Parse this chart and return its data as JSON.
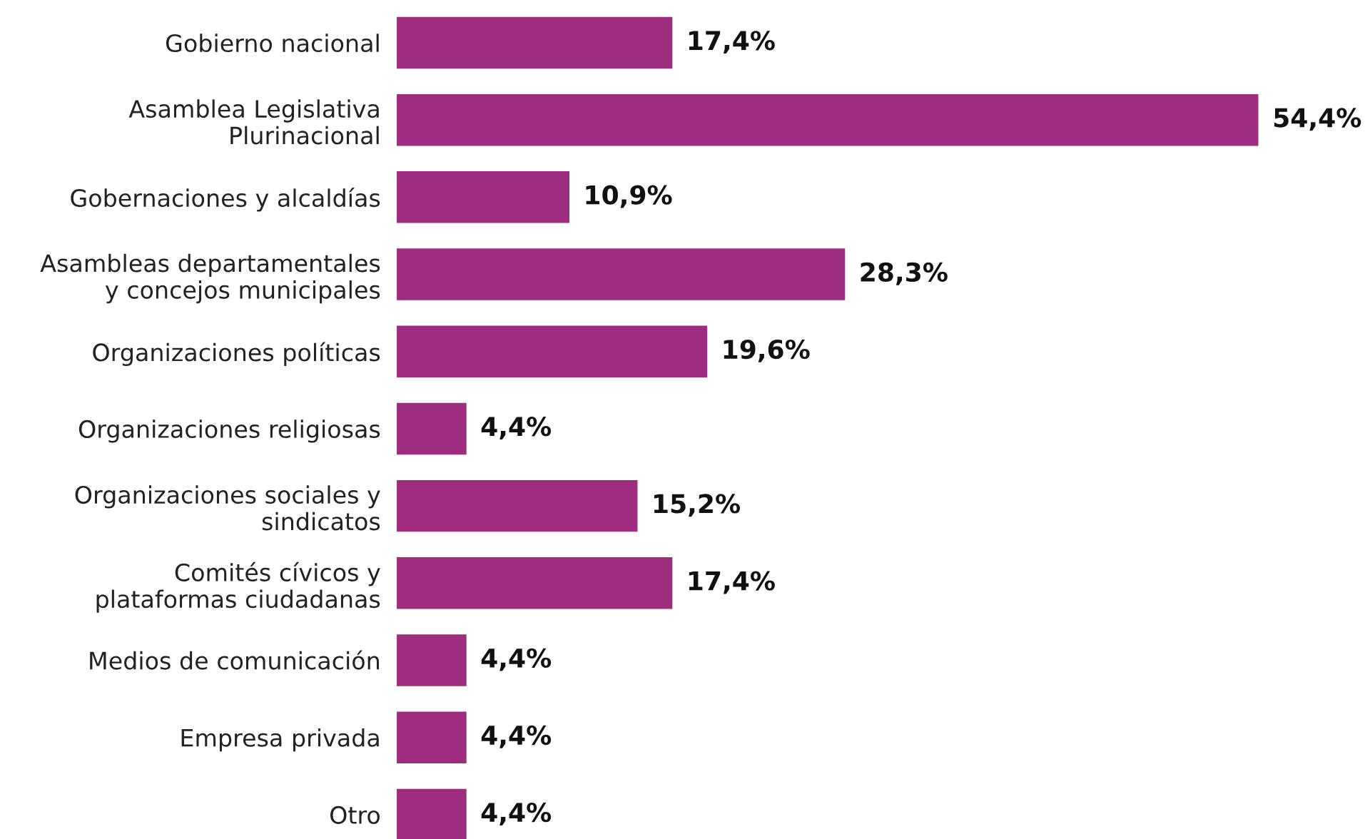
{
  "chart_data": {
    "type": "bar",
    "orientation": "horizontal",
    "categories": [
      "Gobierno nacional",
      "Asamblea Legislativa\nPlurinacional",
      "Gobernaciones y alcaldías",
      "Asambleas departamentales\ny concejos municipales",
      "Organizaciones políticas",
      "Organizaciones religiosas",
      "Organizaciones sociales y\nsindicatos",
      "Comités cívicos y\nplataformas ciudadanas",
      "Medios de comunicación",
      "Empresa privada",
      "Otro"
    ],
    "values": [
      17.4,
      54.4,
      10.9,
      28.3,
      19.6,
      4.4,
      15.2,
      17.4,
      4.4,
      4.4,
      4.4
    ],
    "value_labels": [
      "17,4%",
      "54,4%",
      "10,9%",
      "28,3%",
      "19,6%",
      "4,4%",
      "15,2%",
      "17,4%",
      "4,4%",
      "4,4%",
      "4,4%"
    ],
    "color": "#9e2d7f",
    "grid": false,
    "legend": false,
    "tick_labels": "y"
  }
}
